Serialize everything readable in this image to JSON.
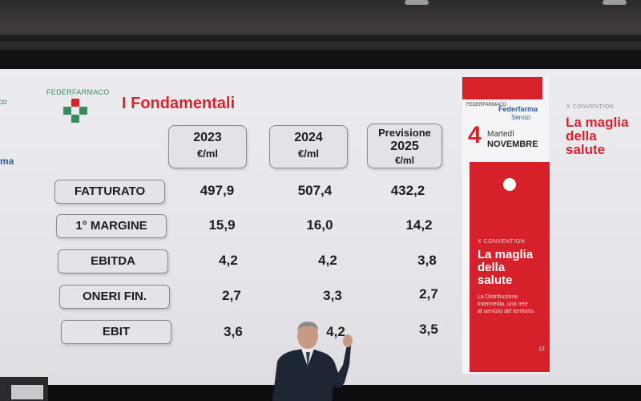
{
  "slide": {
    "logo_text": "FEDERFARMACO",
    "title": "I Fondamentali",
    "left_edge_text": "co",
    "left_edge_text2": "ma"
  },
  "columns": [
    {
      "label": "",
      "year": "2023",
      "unit": "€/ml"
    },
    {
      "label": "",
      "year": "2024",
      "unit": "€/ml"
    },
    {
      "label": "Previsione",
      "year": "2025",
      "unit": "€/ml"
    }
  ],
  "rows": [
    {
      "label": "FATTURATO",
      "values": [
        "497,9",
        "507,4",
        "432,2"
      ]
    },
    {
      "label": "1° MARGINE",
      "values": [
        "15,9",
        "16,0",
        "14,2"
      ]
    },
    {
      "label": "EBITDA",
      "values": [
        "4,2",
        "4,2",
        "3,8"
      ]
    },
    {
      "label": "ONERI FIN.",
      "values": [
        "2,7",
        "3,3",
        "2,7"
      ]
    },
    {
      "label": "EBIT",
      "values": [
        "3,6",
        "4,2",
        "3,5"
      ]
    }
  ],
  "poster": {
    "logo1": "FEDERFARMACO",
    "logo2": "Federfarma",
    "logo2_sub": "Servizi",
    "date_num": "4",
    "date_day": "Martedì",
    "date_month": "NOVEMBRE",
    "convention": "X CONVENTION",
    "tagline": [
      "La maglia",
      "della",
      "salute"
    ],
    "subtitle": [
      "La Distribuzione",
      "Intermedia, una rete",
      "al servizio del territorio"
    ],
    "number": "12"
  },
  "right_panel": {
    "convention": "X CONVENTION",
    "tagline": [
      "La maglia",
      "della",
      "salute"
    ]
  },
  "colors": {
    "accent_red": "#d4262c",
    "logo_green": "#3a8a5e",
    "federfarma_blue": "#2b5aa8"
  }
}
